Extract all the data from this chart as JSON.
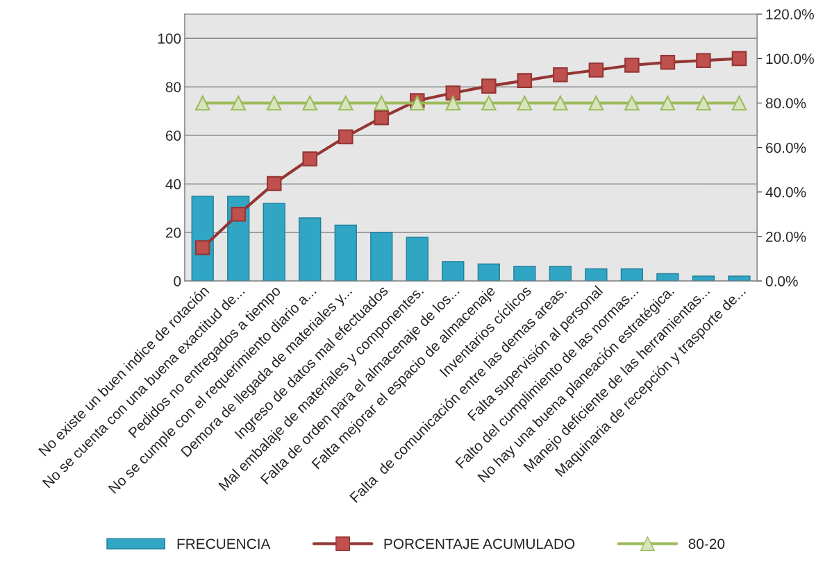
{
  "chart_data": {
    "type": "bar",
    "categories": [
      "No existe un buen indice de rotación",
      "No se cuenta con una buena exactitud de...",
      "Pedidos no entregados a tiempo",
      "No se cumple con el requerimiento diario a...",
      "Demora de llegada de materiales y...",
      "Ingreso de datos mal efectuados",
      "Mal embalaje de materiales y componentes.",
      "Falta de orden para el almacenaje de los...",
      "Falta mejorar el espacio de almacenaje",
      "Inventarios cíclicos",
      "Falta  de comunicación entre las demas areas.",
      "Falta supervisión al personal",
      "Falto del cumplimiento de las normas...",
      "No hay una buena planeación estratégica.",
      "Manejo deficiente de las herramientas...",
      "Maquinaria de recepción y trasporte de..."
    ],
    "series": [
      {
        "name": "FRECUENCIA",
        "color": "#31a5c4",
        "values": [
          35,
          35,
          32,
          26,
          23,
          20,
          18,
          8,
          7,
          6,
          6,
          5,
          5,
          3,
          2,
          2
        ]
      },
      {
        "name": "PORCENTAJE ACUMULADO",
        "type": "line",
        "axis": "y2",
        "color": "#943634",
        "marker": "square",
        "values": [
          15.0,
          30.0,
          43.8,
          54.9,
          64.8,
          73.4,
          81.1,
          84.5,
          87.6,
          90.1,
          92.7,
          94.8,
          97.0,
          98.3,
          99.1,
          100.0
        ]
      },
      {
        "name": "80-20",
        "type": "line",
        "axis": "y2",
        "color": "#9bbb59",
        "marker": "triangle",
        "values": [
          80,
          80,
          80,
          80,
          80,
          80,
          80,
          80,
          80,
          80,
          80,
          80,
          80,
          80,
          80,
          80
        ]
      }
    ],
    "ylim": [
      0,
      110
    ],
    "yticks": [
      0,
      20,
      40,
      60,
      80,
      100
    ],
    "y2lim": [
      0,
      120
    ],
    "y2ticks": [
      {
        "value": 0,
        "label": "0.0%"
      },
      {
        "value": 20,
        "label": "20.0%"
      },
      {
        "value": 40,
        "label": "40.0%"
      },
      {
        "value": 60,
        "label": "60.0%"
      },
      {
        "value": 80,
        "label": "80.0%"
      },
      {
        "value": 100,
        "label": "100.0%"
      },
      {
        "value": 120,
        "label": "120.0%"
      }
    ],
    "grid": "y",
    "legend": "bottom"
  }
}
